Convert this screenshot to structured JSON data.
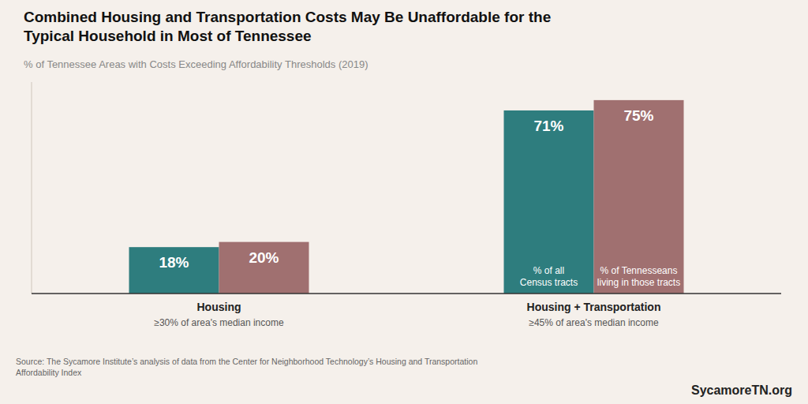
{
  "chart_data": {
    "type": "bar",
    "title": "Combined Housing and Transportation Costs May Be Unaffordable for the\nTypical Household in Most of Tennessee",
    "subtitle": "% of Tennessee Areas with Costs Exceeding Affordability Thresholds (2019)",
    "categories": [
      "Housing\n≥30% of area's median income",
      "Housing + Transportation\n≥45% of area's median income"
    ],
    "series": [
      {
        "name": "% of all\nCensus tracts",
        "color": "#2e7d7e",
        "values": [
          18,
          71
        ],
        "value_labels": [
          "18%",
          "71%"
        ]
      },
      {
        "name": "% of Tennesseans\nliving in those tracts",
        "color": "#a07070",
        "values": [
          20,
          75
        ],
        "value_labels": [
          "20%",
          "75%"
        ]
      }
    ],
    "ylim": [
      0,
      82
    ],
    "tick_labels": false,
    "grid": false,
    "data_labels": true,
    "annotations": [
      "Source: The Sycamore Institute’s analysis of data from the Center for Neighborhood Technology’s Housing and Transportation\nAffordability Index",
      "SycamoreTN.org"
    ]
  }
}
